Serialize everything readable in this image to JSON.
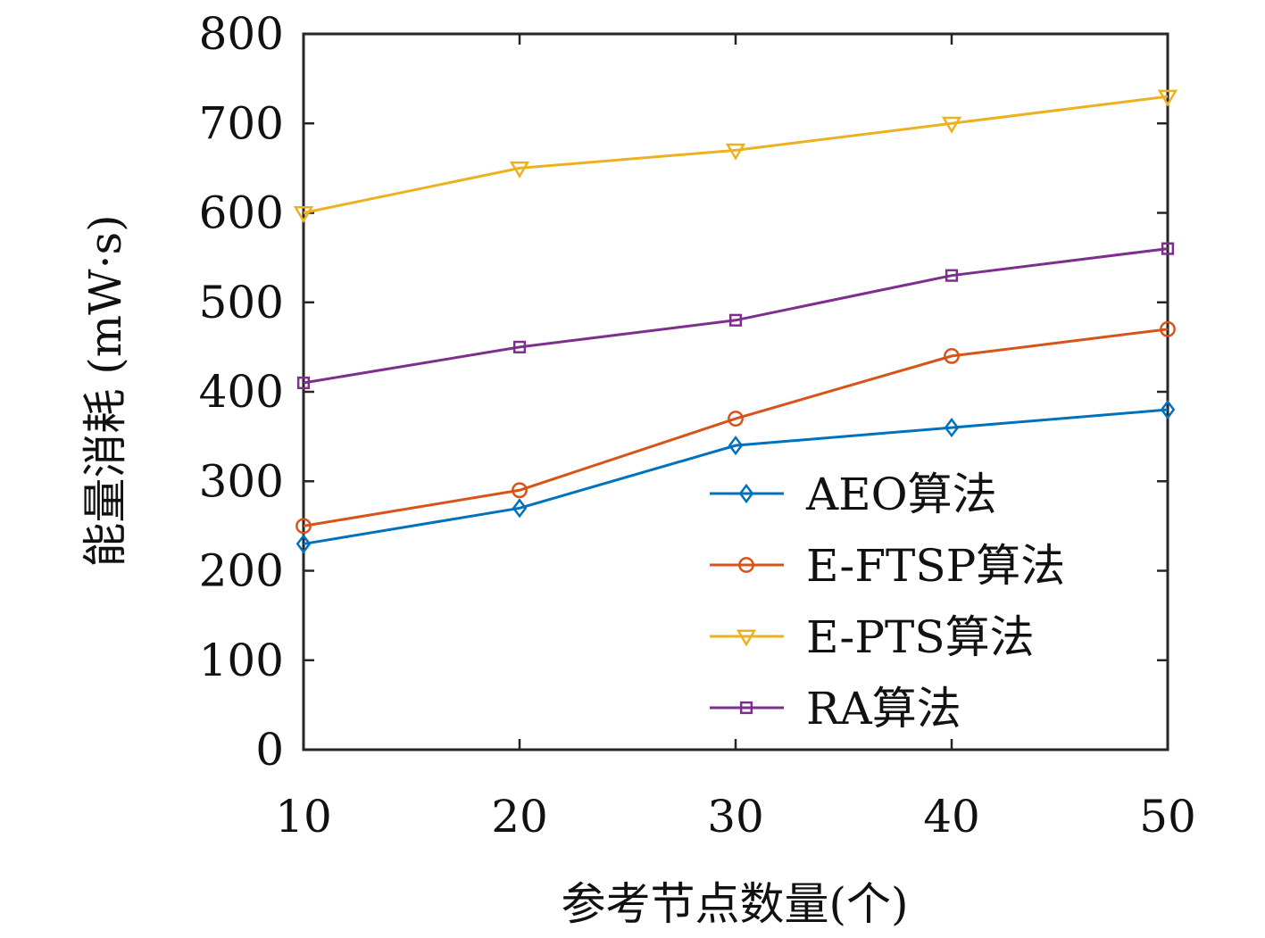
{
  "chart_data": {
    "type": "line",
    "title": "",
    "xlabel": "参考节点数量(个)",
    "ylabel": "能量消耗 (mW·s)",
    "x": [
      10,
      20,
      30,
      40,
      50
    ],
    "xlim": [
      10,
      50
    ],
    "ylim": [
      0,
      800
    ],
    "xticks": [
      "10",
      "20",
      "30",
      "40",
      "50"
    ],
    "yticks": [
      "0",
      "100",
      "200",
      "300",
      "400",
      "500",
      "600",
      "700",
      "800"
    ],
    "grid": false,
    "legend_position": "bottom-right",
    "series": [
      {
        "name": "AEO算法",
        "values": [
          230,
          270,
          340,
          360,
          380
        ],
        "color": "#0072BD",
        "marker": "diamond"
      },
      {
        "name": "E-FTSP算法",
        "values": [
          250,
          290,
          370,
          440,
          470
        ],
        "color": "#D95319",
        "marker": "circle"
      },
      {
        "name": "E-PTS算法",
        "values": [
          600,
          650,
          670,
          700,
          730
        ],
        "color": "#EDB120",
        "marker": "triangle-down"
      },
      {
        "name": "RA算法",
        "values": [
          410,
          450,
          480,
          530,
          560
        ],
        "color": "#7E2F8E",
        "marker": "square"
      }
    ]
  }
}
